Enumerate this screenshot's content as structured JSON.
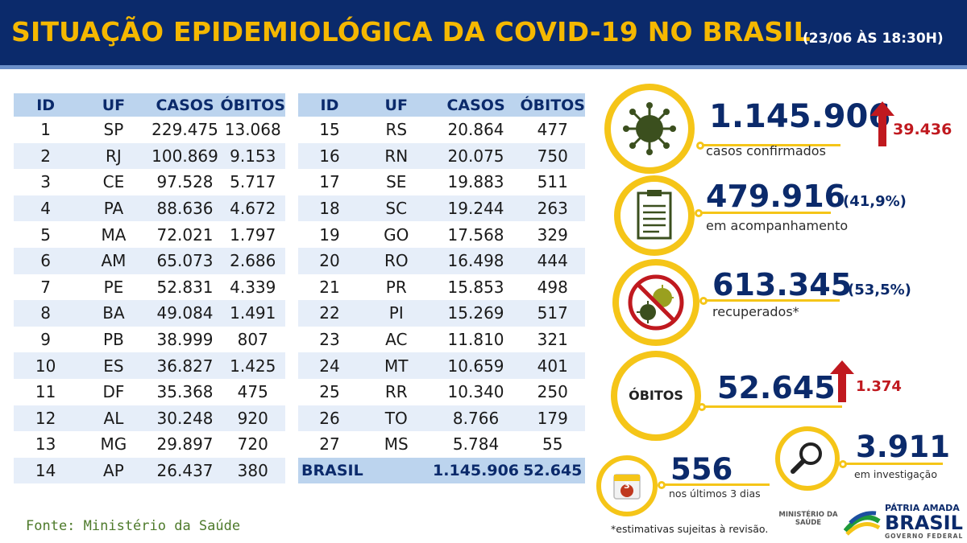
{
  "header": {
    "title": "SITUAÇÃO EPIDEMIOLÓGICA DA COVID-19 NO BRASIL",
    "datetime": "(23/06 ÀS 18:30H)"
  },
  "table_headers": {
    "id": "ID",
    "uf": "UF",
    "casos": "CASOS",
    "obitos": "ÓBITOS"
  },
  "table_left": [
    {
      "id": "1",
      "uf": "SP",
      "casos": "229.475",
      "obitos": "13.068"
    },
    {
      "id": "2",
      "uf": "RJ",
      "casos": "100.869",
      "obitos": "9.153"
    },
    {
      "id": "3",
      "uf": "CE",
      "casos": "97.528",
      "obitos": "5.717"
    },
    {
      "id": "4",
      "uf": "PA",
      "casos": "88.636",
      "obitos": "4.672"
    },
    {
      "id": "5",
      "uf": "MA",
      "casos": "72.021",
      "obitos": "1.797"
    },
    {
      "id": "6",
      "uf": "AM",
      "casos": "65.073",
      "obitos": "2.686"
    },
    {
      "id": "7",
      "uf": "PE",
      "casos": "52.831",
      "obitos": "4.339"
    },
    {
      "id": "8",
      "uf": "BA",
      "casos": "49.084",
      "obitos": "1.491"
    },
    {
      "id": "9",
      "uf": "PB",
      "casos": "38.999",
      "obitos": "807"
    },
    {
      "id": "10",
      "uf": "ES",
      "casos": "36.827",
      "obitos": "1.425"
    },
    {
      "id": "11",
      "uf": "DF",
      "casos": "35.368",
      "obitos": "475"
    },
    {
      "id": "12",
      "uf": "AL",
      "casos": "30.248",
      "obitos": "920"
    },
    {
      "id": "13",
      "uf": "MG",
      "casos": "29.897",
      "obitos": "720"
    },
    {
      "id": "14",
      "uf": "AP",
      "casos": "26.437",
      "obitos": "380"
    }
  ],
  "table_right": [
    {
      "id": "15",
      "uf": "RS",
      "casos": "20.864",
      "obitos": "477"
    },
    {
      "id": "16",
      "uf": "RN",
      "casos": "20.075",
      "obitos": "750"
    },
    {
      "id": "17",
      "uf": "SE",
      "casos": "19.883",
      "obitos": "511"
    },
    {
      "id": "18",
      "uf": "SC",
      "casos": "19.244",
      "obitos": "263"
    },
    {
      "id": "19",
      "uf": "GO",
      "casos": "17.568",
      "obitos": "329"
    },
    {
      "id": "20",
      "uf": "RO",
      "casos": "16.498",
      "obitos": "444"
    },
    {
      "id": "21",
      "uf": "PR",
      "casos": "15.853",
      "obitos": "498"
    },
    {
      "id": "22",
      "uf": "PI",
      "casos": "15.269",
      "obitos": "517"
    },
    {
      "id": "23",
      "uf": "AC",
      "casos": "11.810",
      "obitos": "321"
    },
    {
      "id": "24",
      "uf": "MT",
      "casos": "10.659",
      "obitos": "401"
    },
    {
      "id": "25",
      "uf": "RR",
      "casos": "10.340",
      "obitos": "250"
    },
    {
      "id": "26",
      "uf": "TO",
      "casos": "8.766",
      "obitos": "179"
    },
    {
      "id": "27",
      "uf": "MS",
      "casos": "5.784",
      "obitos": "55"
    }
  ],
  "total": {
    "label": "BRASIL",
    "casos": "1.145.906",
    "obitos": "52.645"
  },
  "stats": {
    "confirmed": {
      "value": "1.145.906",
      "label": "casos confirmados",
      "increase": "39.436",
      "icon": "virus-icon"
    },
    "monitoring": {
      "value": "479.916",
      "pct": "(41,9%)",
      "label": "em acompanhamento",
      "icon": "clipboard-icon"
    },
    "recovered": {
      "value": "613.345",
      "pct": "(53,5%)",
      "label": "recuperados*",
      "icon": "no-virus-icon"
    },
    "deaths": {
      "title": "ÓBITOS",
      "value": "52.645",
      "increase": "1.374"
    },
    "investigation": {
      "value": "3.911",
      "label": "em investigação",
      "icon": "magnifier-icon"
    },
    "last3days": {
      "value": "556",
      "label": "nos últimos 3 dias",
      "badge": "3",
      "icon": "calendar-icon"
    }
  },
  "footer": {
    "source": "Fonte: Ministério da Saúde",
    "note": "*estimativas sujeitas à revisão.",
    "ministerio": "MINISTÉRIO DA SAÚDE",
    "brand_top": "PÁTRIA AMADA",
    "brand_main": "BRASIL",
    "brand_sub": "GOVERNO FEDERAL"
  },
  "colors": {
    "navy": "#0b2a6b",
    "yellow": "#f5c518",
    "red": "#c0191f",
    "light_blue": "#bcd4ee"
  }
}
